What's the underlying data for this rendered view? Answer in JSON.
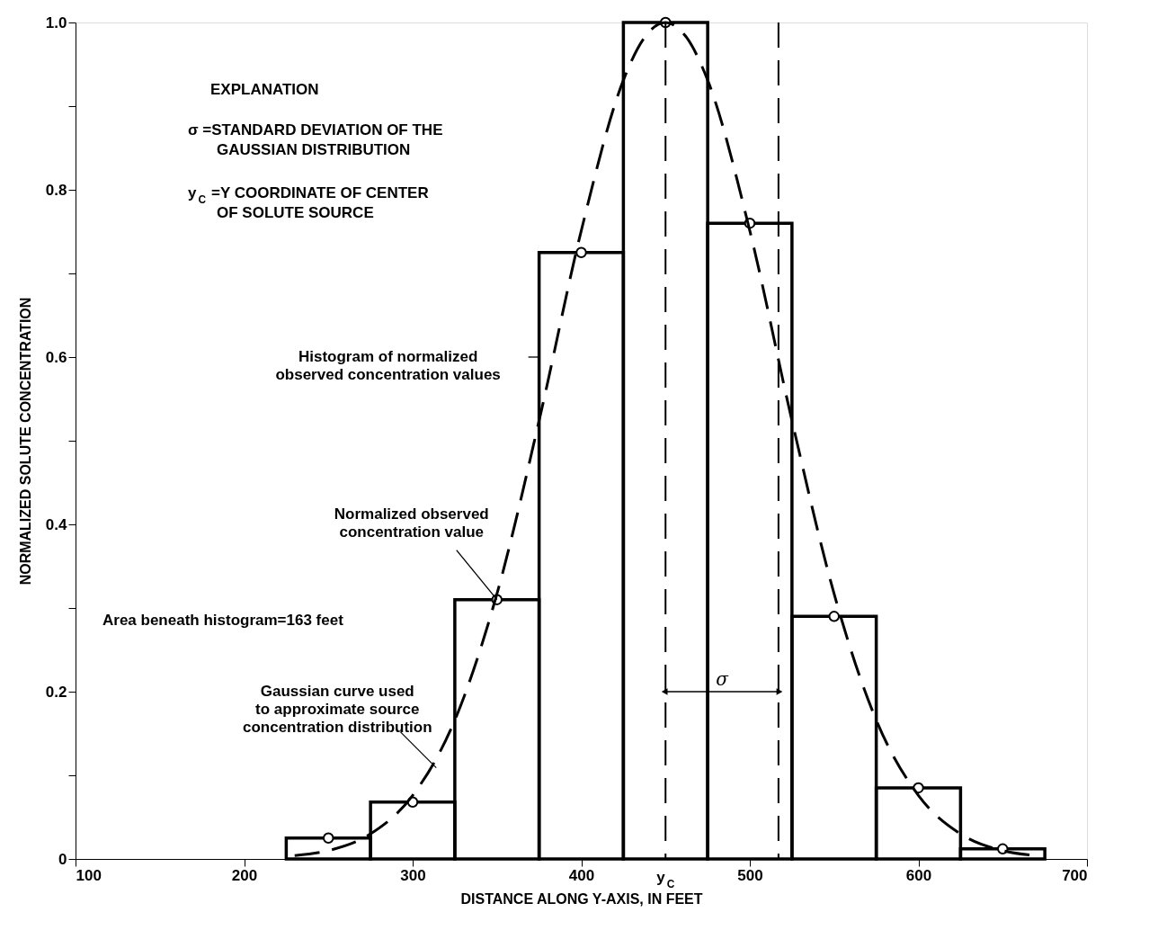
{
  "chart_data": {
    "type": "histogram",
    "xlabel": "DISTANCE ALONG Y-AXIS, IN FEET",
    "ylabel": "NORMALIZED SOLUTE CONCENTRATION",
    "bins": [
      225,
      275,
      325,
      375,
      425,
      475,
      525,
      575,
      625,
      675
    ],
    "values": [
      0.025,
      0.068,
      0.31,
      0.725,
      1.0,
      0.76,
      0.29,
      0.085,
      0.012
    ],
    "color": "#000000",
    "series": [
      {
        "type": "scatter",
        "marker": "circle",
        "color": "#000000",
        "x": [
          250,
          300,
          350,
          400,
          450,
          500,
          550,
          600,
          650
        ],
        "values": [
          0.025,
          0.068,
          0.31,
          0.725,
          1.0,
          0.76,
          0.29,
          0.085,
          0.012
        ]
      },
      {
        "type": "line",
        "line_style": "dashed",
        "color": "#000000",
        "x": [
          230,
          250,
          275,
          300,
          325,
          350,
          375,
          400,
          425,
          437.5,
          450,
          462.5,
          475,
          500,
          525,
          550,
          575,
          600,
          625,
          650,
          670
        ],
        "values": [
          0.004,
          0.01,
          0.03,
          0.076,
          0.166,
          0.317,
          0.524,
          0.751,
          0.931,
          0.982,
          1.0,
          0.982,
          0.931,
          0.751,
          0.524,
          0.317,
          0.166,
          0.076,
          0.03,
          0.01,
          0.004
        ]
      }
    ],
    "xlim": [
      100,
      700
    ],
    "ylim": [
      0,
      1
    ],
    "xticks": [
      100,
      200,
      300,
      400,
      500,
      600,
      700
    ],
    "yticks": [
      0,
      {
        "value": 0.1,
        "label": null
      },
      0.2,
      {
        "value": 0.3,
        "label": null
      },
      0.4,
      {
        "value": 0.5,
        "label": null
      },
      0.6,
      {
        "value": 0.7,
        "label": null
      },
      0.8,
      {
        "value": 0.9,
        "label": null
      },
      {
        "value": 1,
        "label": "1.0"
      }
    ],
    "ref_lines": [
      {
        "axis": "x",
        "value": 450,
        "label": "y$_{C}$",
        "line_style": "dashed"
      },
      {
        "axis": "x",
        "value": 517,
        "label": "σ",
        "line_style": "dashed"
      }
    ],
    "annotations": [
      "EXPLANATION",
      "σ =STANDARD DEVIATION OF THE\nGAUSSIAN DISTRIBUTION",
      "y$_{C}$ =Y COORDINATE OF CENTER\nOF SOLUTE SOURCE",
      "Area beneath histogram=163 feet",
      {
        "text": "Histogram of normalized\nobserved concentration values",
        "x": 375,
        "y": 0.6
      },
      {
        "text": "Normalized observed\nconcentration value",
        "x": 350,
        "y": 0.31
      },
      {
        "text": "Gaussian curve used\nto approximate source\nconcentration distribution",
        "x": 314,
        "y": 0.109
      }
    ]
  }
}
